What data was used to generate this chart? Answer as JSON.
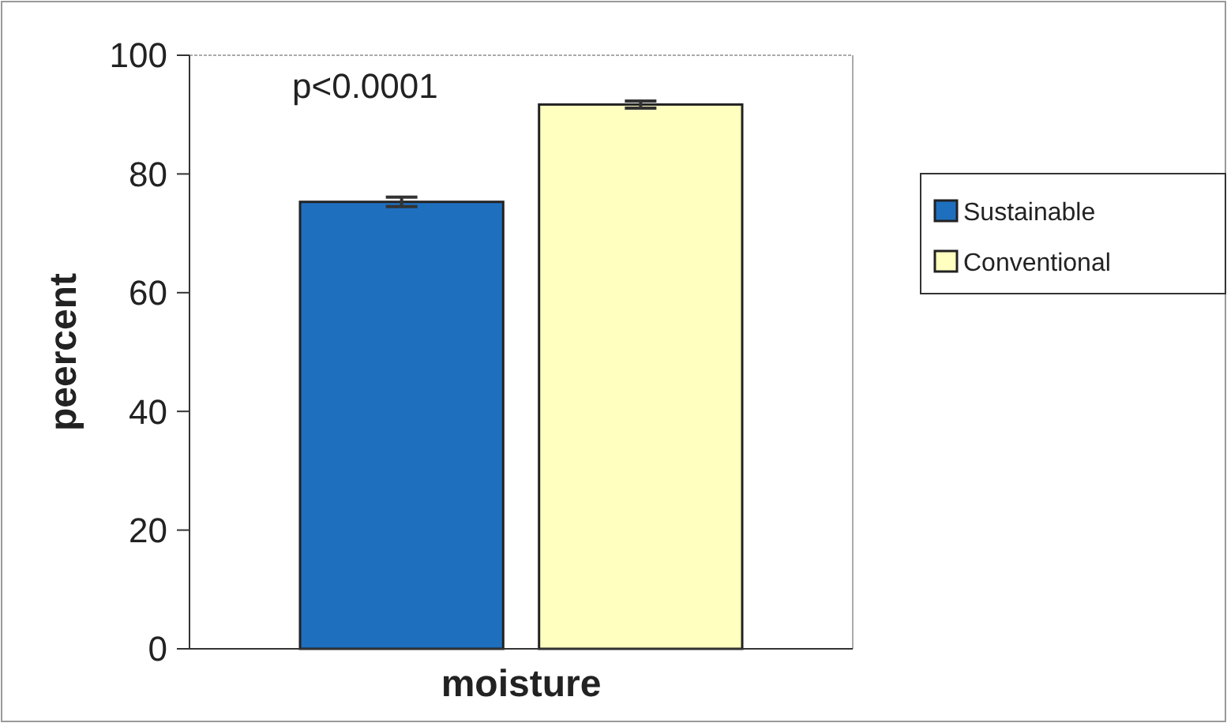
{
  "chart_data": {
    "type": "bar",
    "categories": [
      null
    ],
    "xlabel": "moisture",
    "ylabel": "peercent",
    "series": [
      {
        "name": "Sustainable",
        "color": "#1f6fbf",
        "values": [
          75.3
        ],
        "errors": [
          0.8
        ]
      },
      {
        "name": "Conventional",
        "color": "#ffffc0",
        "values": [
          91.7
        ],
        "errors": [
          0.6
        ]
      }
    ],
    "ylim": [
      0,
      100
    ],
    "yticks": [
      0,
      20,
      40,
      60,
      80,
      100
    ],
    "grid": false,
    "legend": "right",
    "annotations": [
      "p<0.0001"
    ]
  }
}
